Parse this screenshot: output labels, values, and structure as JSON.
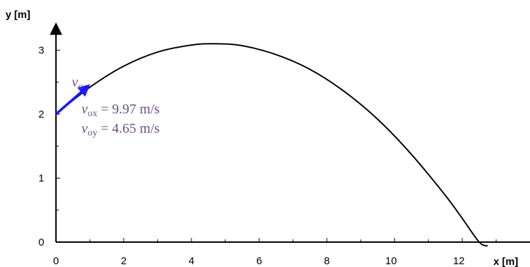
{
  "chart_data": {
    "type": "line",
    "xlabel": "x [m]",
    "ylabel": "y [m]",
    "xlim": [
      0,
      13.4
    ],
    "ylim": [
      0,
      3.35
    ],
    "x_ticks": [
      0,
      2,
      4,
      6,
      8,
      10,
      12
    ],
    "x_tick_labels": [
      "0",
      "2",
      "4",
      "6",
      "8",
      "10",
      "12"
    ],
    "y_ticks": [
      0,
      1,
      2,
      3
    ],
    "y_tick_labels": [
      "0",
      "1",
      "2",
      "3"
    ],
    "grid": false,
    "series": [
      {
        "color": "#000000",
        "x": [
          0,
          1,
          2,
          3,
          4,
          4.7,
          5.5,
          6.5,
          7.5,
          8.5,
          9.5,
          10.5,
          11.5,
          12.0,
          12.5,
          12.75
        ],
        "y": [
          2.0,
          2.42,
          2.75,
          2.97,
          3.08,
          3.1,
          3.07,
          2.93,
          2.7,
          2.36,
          1.92,
          1.37,
          0.73,
          0.37,
          0.0,
          -0.06
        ]
      }
    ],
    "arrow": {
      "label_main": "v",
      "label_sub": "o",
      "from": [
        0,
        2.0
      ],
      "to": [
        0.93,
        2.43
      ],
      "color": "#1a1aff"
    },
    "annotations": [
      {
        "main": "v",
        "sub": "ox",
        "text": " = 9.97 m/s"
      },
      {
        "main": "v",
        "sub": "oy",
        "text": " = 4.65 m/s"
      }
    ],
    "annotation_color": "#6b4f8a"
  }
}
